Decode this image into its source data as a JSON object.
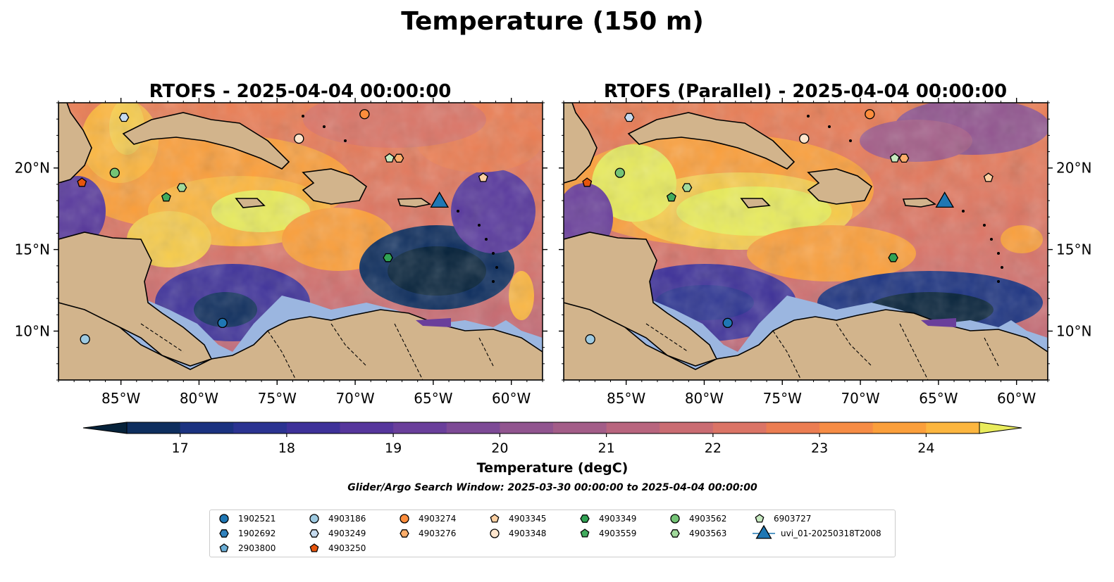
{
  "figure": {
    "suptitle": "Temperature (150 m)",
    "search_window": "Glider/Argo Search Window: 2025-03-30 00:00:00 to 2025-04-04 00:00:00"
  },
  "panels": [
    {
      "id": "rtofs",
      "title": "RTOFS - 2025-04-04 00:00:00",
      "model": "RTOFS"
    },
    {
      "id": "rtofs-parallel",
      "title": "RTOFS (Parallel) - 2025-04-04 00:00:00",
      "model": "RTOFS (Parallel)"
    }
  ],
  "map": {
    "lon_range": [
      -89,
      -58
    ],
    "lat_range": [
      7,
      24
    ],
    "lon_ticks": [
      {
        "value": -85,
        "label": "85°W"
      },
      {
        "value": -80,
        "label": "80°W"
      },
      {
        "value": -75,
        "label": "75°W"
      },
      {
        "value": -70,
        "label": "70°W"
      },
      {
        "value": -65,
        "label": "65°W"
      },
      {
        "value": -60,
        "label": "60°W"
      }
    ],
    "lat_ticks": [
      {
        "value": 20,
        "label": "20°N"
      },
      {
        "value": 15,
        "label": "15°N"
      },
      {
        "value": 10,
        "label": "10°N"
      }
    ],
    "colors": {
      "land": "#d2b48c",
      "shelf": "#9bb6e0",
      "coast": "#000000"
    }
  },
  "colorbar": {
    "label": "Temperature (degC)",
    "min": 16.5,
    "max": 24.5,
    "step": 0.5,
    "ticks": [
      17,
      18,
      19,
      20,
      21,
      22,
      23,
      24
    ],
    "extend": "both",
    "colors": [
      "#06223a",
      "#0e2e5e",
      "#1b3280",
      "#2b3391",
      "#3e3199",
      "#56369c",
      "#6a3f9b",
      "#7d4a96",
      "#91558f",
      "#a35d88",
      "#b8657e",
      "#ca6c72",
      "#db7466",
      "#eb7d52",
      "#f68c45",
      "#fb9f3b",
      "#fcb63f",
      "#f7cc4c",
      "#e9ec5c"
    ]
  },
  "chart_data": {
    "type": "map",
    "title": "Temperature (150 m)",
    "variable": "Temperature at 150 m",
    "units": "degC",
    "valid_time": "2025-04-04 00:00:00",
    "observations": [
      {
        "id": "1902521",
        "lon": -78.5,
        "lat": 10.5,
        "marker": "circle",
        "color": "#1f77b4"
      },
      {
        "id": "4903186",
        "lon": -87.3,
        "lat": 9.5,
        "marker": "circle",
        "color": "#9ecae1"
      },
      {
        "id": "4903249",
        "lon": -84.8,
        "lat": 23.1,
        "marker": "hexagon",
        "color": "#c6dbef"
      },
      {
        "id": "4903250",
        "lon": -87.5,
        "lat": 19.1,
        "marker": "pentagon",
        "color": "#e6550d"
      },
      {
        "id": "4903274",
        "lon": -69.4,
        "lat": 23.3,
        "marker": "circle",
        "color": "#fd8d3c"
      },
      {
        "id": "4903276",
        "lon": -67.2,
        "lat": 20.6,
        "marker": "hexagon",
        "color": "#fdae6b"
      },
      {
        "id": "4903345",
        "lon": -61.8,
        "lat": 19.4,
        "marker": "pentagon",
        "color": "#fdd0a2"
      },
      {
        "id": "4903348",
        "lon": -73.6,
        "lat": 21.8,
        "marker": "circle",
        "color": "#fee6ce"
      },
      {
        "id": "4903349",
        "lon": -67.9,
        "lat": 14.5,
        "marker": "hexagon",
        "color": "#31a354"
      },
      {
        "id": "4903559",
        "lon": -82.1,
        "lat": 18.2,
        "marker": "pentagon",
        "color": "#41ab5d"
      },
      {
        "id": "4903562",
        "lon": -85.4,
        "lat": 19.7,
        "marker": "circle",
        "color": "#74c476"
      },
      {
        "id": "4903563",
        "lon": -81.1,
        "lat": 18.8,
        "marker": "hexagon",
        "color": "#a1d99b"
      },
      {
        "id": "6903727",
        "lon": -67.8,
        "lat": 20.6,
        "marker": "pentagon",
        "color": "#c7e9c0"
      },
      {
        "id": "uvi_01-20250318T2008",
        "lon": -64.6,
        "lat": 17.9,
        "marker": "triangle",
        "color": "#1f77b4",
        "type": "glider"
      }
    ]
  },
  "legend": {
    "columns": [
      [
        {
          "label": "1902521",
          "marker": "circle",
          "color": "#1f77b4"
        },
        {
          "label": "1902692",
          "marker": "hexagon",
          "color": "#3182bd"
        },
        {
          "label": "2903800",
          "marker": "pentagon",
          "color": "#6baed6"
        }
      ],
      [
        {
          "label": "4903186",
          "marker": "circle",
          "color": "#9ecae1"
        },
        {
          "label": "4903249",
          "marker": "hexagon",
          "color": "#c6dbef"
        },
        {
          "label": "4903250",
          "marker": "pentagon",
          "color": "#e6550d"
        }
      ],
      [
        {
          "label": "4903274",
          "marker": "circle",
          "color": "#fd8d3c"
        },
        {
          "label": "4903276",
          "marker": "hexagon",
          "color": "#fdae6b"
        }
      ],
      [
        {
          "label": "4903345",
          "marker": "pentagon",
          "color": "#fdd0a2"
        },
        {
          "label": "4903348",
          "marker": "circle",
          "color": "#fee6ce"
        }
      ],
      [
        {
          "label": "4903349",
          "marker": "hexagon",
          "color": "#31a354"
        },
        {
          "label": "4903559",
          "marker": "pentagon",
          "color": "#41ab5d"
        }
      ],
      [
        {
          "label": "4903562",
          "marker": "circle",
          "color": "#74c476"
        },
        {
          "label": "4903563",
          "marker": "hexagon",
          "color": "#a1d99b"
        }
      ],
      [
        {
          "label": "6903727",
          "marker": "pentagon",
          "color": "#c7e9c0"
        },
        {
          "label": "uvi_01-20250318T2008",
          "marker": "triangle",
          "color": "#1f77b4"
        }
      ]
    ]
  }
}
